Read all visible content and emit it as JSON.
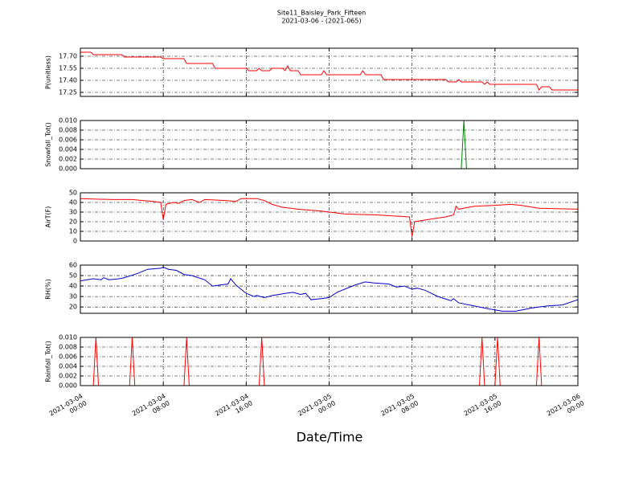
{
  "title": "Site11_Baisley_Park_Fifteen",
  "subtitle": "2021-03-06 - (2021-065)",
  "xlabel": "Date/Time",
  "xlim": [
    "2021-03-04 00:00",
    "2021-03-06 00:00"
  ],
  "xticks": [
    "2021-03-04 00:00",
    "2021-03-04 08:00",
    "2021-03-04 16:00",
    "2021-03-05 00:00",
    "2021-03-05 08:00",
    "2021-03-05 16:00",
    "2021-03-06 00:00"
  ],
  "grid": true,
  "chart_data": [
    {
      "type": "line",
      "ylabel": "P(unitless)",
      "color": "#ff0000",
      "ylim": [
        17.2,
        17.8
      ],
      "yticks": [
        17.25,
        {
          "value": 17.4,
          "label": "17.40"
        },
        17.55,
        {
          "value": 17.7,
          "label": "17.70"
        }
      ],
      "x": [
        "2021-03-04 00:00",
        "2021-03-04 01:00",
        "2021-03-04 01:15",
        "2021-03-04 04:00",
        "2021-03-04 04:15",
        "2021-03-04 07:45",
        "2021-03-04 08:00",
        "2021-03-04 10:00",
        "2021-03-04 10:15",
        "2021-03-04 12:45",
        "2021-03-04 13:00",
        "2021-03-04 16:00",
        "2021-03-04 16:15",
        "2021-03-04 17:00",
        "2021-03-04 17:15",
        "2021-03-04 17:30",
        "2021-03-04 18:15",
        "2021-03-04 18:30",
        "2021-03-04 19:30",
        "2021-03-04 19:45",
        "2021-03-04 20:00",
        "2021-03-04 20:15",
        "2021-03-04 21:00",
        "2021-03-04 21:15",
        "2021-03-04 23:15",
        "2021-03-04 23:30",
        "2021-03-04 23:45",
        "2021-03-05 03:00",
        "2021-03-05 03:15",
        "2021-03-05 03:30",
        "2021-03-05 05:00",
        "2021-03-05 05:15",
        "2021-03-05 11:15",
        "2021-03-05 11:30",
        "2021-03-05 12:15",
        "2021-03-05 12:30",
        "2021-03-05 12:45",
        "2021-03-05 14:45",
        "2021-03-05 15:00",
        "2021-03-05 15:15",
        "2021-03-05 15:30",
        "2021-03-05 20:00",
        "2021-03-05 20:15",
        "2021-03-05 20:30",
        "2021-03-05 21:15",
        "2021-03-05 21:30",
        "2021-03-06 00:00"
      ],
      "values": [
        17.75,
        17.75,
        17.72,
        17.72,
        17.69,
        17.69,
        17.67,
        17.67,
        17.61,
        17.61,
        17.55,
        17.55,
        17.52,
        17.52,
        17.55,
        17.52,
        17.52,
        17.55,
        17.55,
        17.52,
        17.58,
        17.52,
        17.52,
        17.47,
        17.47,
        17.52,
        17.47,
        17.47,
        17.52,
        17.47,
        17.47,
        17.41,
        17.41,
        17.38,
        17.38,
        17.41,
        17.38,
        17.38,
        17.35,
        17.38,
        17.35,
        17.35,
        17.28,
        17.32,
        17.32,
        17.28,
        17.28
      ]
    },
    {
      "type": "line",
      "ylabel": "Snowfall_Tot()",
      "color": "#008000",
      "ylim": [
        0,
        0.01
      ],
      "yticks": [
        {
          "value": 0,
          "label": "0.000"
        },
        {
          "value": 0.002,
          "label": "0.002"
        },
        {
          "value": 0.004,
          "label": "0.004"
        },
        {
          "value": 0.006,
          "label": "0.006"
        },
        {
          "value": 0.008,
          "label": "0.008"
        },
        {
          "value": 0.01,
          "label": "0.010"
        }
      ],
      "x": [
        "2021-03-04 00:00",
        "2021-03-05 12:45",
        "2021-03-05 13:00",
        "2021-03-05 13:15",
        "2021-03-06 00:00"
      ],
      "values": [
        0,
        0,
        0.01,
        0,
        0
      ]
    },
    {
      "type": "line",
      "ylabel": "AirT(F)",
      "color": "#ff0000",
      "ylim": [
        0,
        50
      ],
      "yticks": [
        0,
        10,
        20,
        30,
        40,
        50
      ],
      "x": [
        "2021-03-04 00:00",
        "2021-03-04 03:00",
        "2021-03-04 05:00",
        "2021-03-04 06:00",
        "2021-03-04 07:00",
        "2021-03-04 07:45",
        "2021-03-04 08:00",
        "2021-03-04 08:15",
        "2021-03-04 09:00",
        "2021-03-04 09:30",
        "2021-03-04 10:00",
        "2021-03-04 10:45",
        "2021-03-04 11:15",
        "2021-03-04 11:30",
        "2021-03-04 12:00",
        "2021-03-04 14:00",
        "2021-03-04 15:00",
        "2021-03-04 15:30",
        "2021-03-04 17:00",
        "2021-03-04 17:45",
        "2021-03-04 18:30",
        "2021-03-04 19:30",
        "2021-03-04 21:00",
        "2021-03-04 23:15",
        "2021-03-05 01:30",
        "2021-03-05 04:45",
        "2021-03-05 07:45",
        "2021-03-05 08:00",
        "2021-03-05 08:15",
        "2021-03-05 10:00",
        "2021-03-05 11:15",
        "2021-03-05 12:00",
        "2021-03-05 12:15",
        "2021-03-05 12:30",
        "2021-03-05 14:00",
        "2021-03-05 16:00",
        "2021-03-05 17:30",
        "2021-03-05 18:30",
        "2021-03-05 20:15",
        "2021-03-06 00:00"
      ],
      "values": [
        44,
        43,
        43,
        42,
        41,
        40,
        22,
        38,
        40,
        39,
        42,
        43,
        41,
        40,
        43,
        42,
        41,
        44,
        44,
        42,
        38,
        35,
        33,
        31,
        28,
        27,
        25,
        5,
        20,
        23,
        25,
        27,
        36,
        33,
        36,
        37,
        38,
        37,
        34,
        33
      ]
    },
    {
      "type": "line",
      "ylabel": "RH(%)",
      "color": "#0000cc",
      "ylim": [
        14,
        60
      ],
      "yticks": [
        20,
        30,
        40,
        50,
        60
      ],
      "x": [
        "2021-03-04 00:00",
        "2021-03-04 01:15",
        "2021-03-04 02:00",
        "2021-03-04 02:15",
        "2021-03-04 02:45",
        "2021-03-04 03:45",
        "2021-03-04 04:15",
        "2021-03-04 05:30",
        "2021-03-04 06:30",
        "2021-03-04 07:45",
        "2021-03-04 08:00",
        "2021-03-04 08:30",
        "2021-03-04 09:15",
        "2021-03-04 10:00",
        "2021-03-04 10:45",
        "2021-03-04 12:00",
        "2021-03-04 12:45",
        "2021-03-04 13:30",
        "2021-03-04 14:15",
        "2021-03-04 14:30",
        "2021-03-04 15:00",
        "2021-03-04 16:00",
        "2021-03-04 16:45",
        "2021-03-04 17:00",
        "2021-03-04 17:45",
        "2021-03-04 18:30",
        "2021-03-04 19:45",
        "2021-03-04 20:30",
        "2021-03-04 21:15",
        "2021-03-04 21:45",
        "2021-03-04 22:15",
        "2021-03-04 23:15",
        "2021-03-05 00:00",
        "2021-03-05 00:45",
        "2021-03-05 02:30",
        "2021-03-05 03:30",
        "2021-03-05 04:15",
        "2021-03-05 05:45",
        "2021-03-05 06:30",
        "2021-03-05 07:15",
        "2021-03-05 08:00",
        "2021-03-05 08:30",
        "2021-03-05 09:15",
        "2021-03-05 10:30",
        "2021-03-05 11:45",
        "2021-03-05 12:00",
        "2021-03-05 12:30",
        "2021-03-05 14:00",
        "2021-03-05 15:30",
        "2021-03-05 16:45",
        "2021-03-05 18:00",
        "2021-03-05 19:30",
        "2021-03-05 21:00",
        "2021-03-05 22:30",
        "2021-03-06 00:00"
      ],
      "values": [
        45,
        47,
        46,
        48,
        46,
        47,
        48,
        52,
        56,
        57,
        58,
        56,
        55,
        51,
        50,
        46,
        40,
        41,
        42,
        47,
        41,
        33,
        30,
        31,
        29,
        31,
        33,
        34,
        32,
        33,
        27,
        28,
        29,
        34,
        41,
        44,
        43,
        42,
        39,
        40,
        37,
        38,
        36,
        30,
        26,
        28,
        24,
        21,
        18,
        16,
        16,
        19,
        21,
        22,
        27
      ]
    },
    {
      "type": "line",
      "ylabel": "Rainfall_Tot()",
      "color": "#ff0000",
      "ylim": [
        0,
        0.01
      ],
      "yticks": [
        {
          "value": 0,
          "label": "0.000"
        },
        {
          "value": 0.002,
          "label": "0.002"
        },
        {
          "value": 0.004,
          "label": "0.004"
        },
        {
          "value": 0.006,
          "label": "0.006"
        },
        {
          "value": 0.008,
          "label": "0.008"
        },
        {
          "value": 0.01,
          "label": "0.010"
        }
      ],
      "x": [
        "2021-03-04 00:00",
        "2021-03-04 01:15",
        "2021-03-04 01:30",
        "2021-03-04 01:45",
        "2021-03-04 04:45",
        "2021-03-04 05:00",
        "2021-03-04 05:15",
        "2021-03-04 10:00",
        "2021-03-04 10:15",
        "2021-03-04 10:30",
        "2021-03-04 17:15",
        "2021-03-04 17:30",
        "2021-03-04 17:45",
        "2021-03-05 14:30",
        "2021-03-05 14:45",
        "2021-03-05 15:00",
        "2021-03-05 16:00",
        "2021-03-05 16:15",
        "2021-03-05 16:30",
        "2021-03-05 20:00",
        "2021-03-05 20:15",
        "2021-03-05 20:30",
        "2021-03-06 00:00"
      ],
      "values": [
        0,
        0,
        0.01,
        0,
        0,
        0.01,
        0,
        0,
        0.01,
        0,
        0,
        0.01,
        0,
        0,
        0.01,
        0,
        0,
        0.01,
        0,
        0,
        0.01,
        0,
        0
      ]
    }
  ]
}
